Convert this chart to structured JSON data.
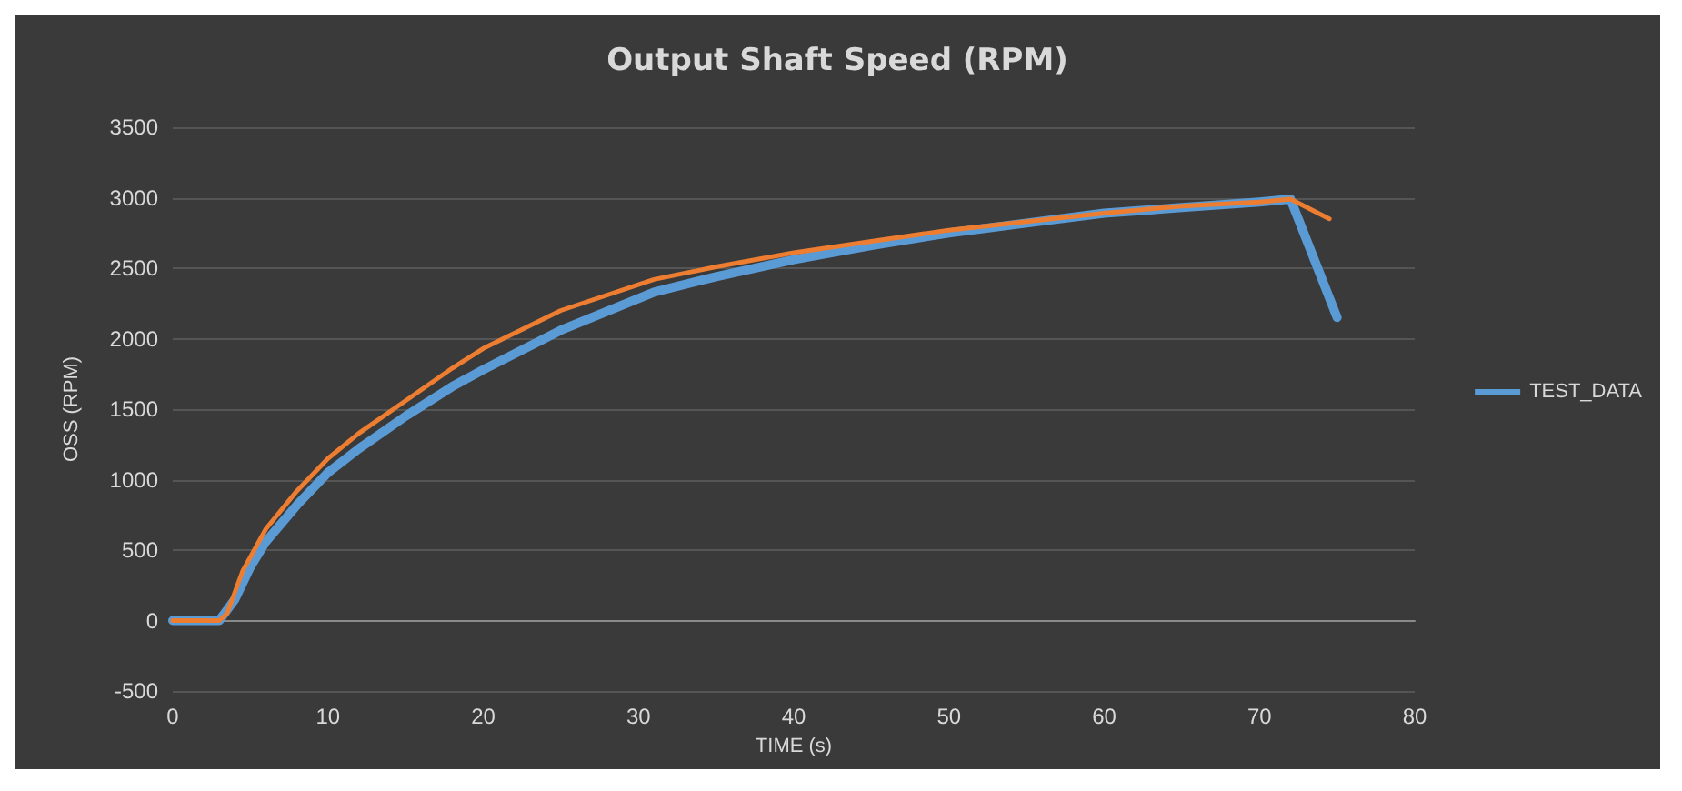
{
  "chart_data": {
    "type": "line",
    "title": "Output Shaft Speed (RPM)",
    "xlabel": "TIME (s)",
    "ylabel": "OSS (RPM)",
    "xlim": [
      0,
      80
    ],
    "xticks": [
      0,
      10,
      20,
      30,
      40,
      50,
      60,
      70,
      80
    ],
    "ylim": [
      -500,
      3500
    ],
    "yticks": [
      -500,
      0,
      500,
      1000,
      1500,
      2000,
      2500,
      3000,
      3500
    ],
    "grid": "y",
    "legend": "right",
    "marker": "none",
    "line_style": "solid",
    "series": [
      {
        "name": "TEST_DATA",
        "color": "#5b9bd5",
        "x": [
          0,
          3,
          4,
          5,
          6,
          8,
          10,
          12,
          15,
          18,
          20,
          25,
          31,
          35,
          40,
          45,
          50,
          55,
          60,
          65,
          70,
          72,
          75
        ],
        "values": [
          0,
          0,
          150,
          380,
          560,
          820,
          1050,
          1220,
          1450,
          1660,
          1780,
          2060,
          2330,
          2440,
          2560,
          2660,
          2750,
          2820,
          2890,
          2930,
          2970,
          2990,
          2150
        ]
      },
      {
        "color": "#ed7d31",
        "x": [
          0,
          3,
          3.5,
          4.5,
          6,
          8,
          10,
          12,
          15,
          18,
          20,
          25,
          31,
          35,
          40,
          45,
          50,
          55,
          60,
          65,
          70,
          72,
          74.5
        ],
        "values": [
          0,
          0,
          50,
          350,
          650,
          920,
          1150,
          1330,
          1560,
          1790,
          1930,
          2200,
          2420,
          2510,
          2610,
          2690,
          2770,
          2830,
          2890,
          2940,
          2970,
          2990,
          2850
        ]
      }
    ]
  }
}
